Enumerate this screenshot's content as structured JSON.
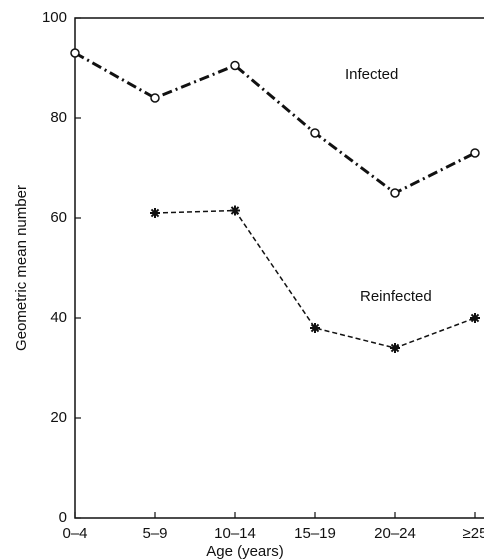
{
  "chart_data": {
    "type": "line",
    "x_label": "Age (years)",
    "y_label": "Geometric mean number",
    "categories": [
      "0–4",
      "5–9",
      "10–14",
      "15–19",
      "20–24",
      "≥25"
    ],
    "series": [
      {
        "name": "Infected",
        "color": "#111111",
        "values": [
          93,
          84,
          90.5,
          77,
          65,
          73
        ]
      },
      {
        "name": "Reinfected",
        "color": "#111111",
        "values": [
          null,
          61,
          61.5,
          38,
          34,
          40
        ]
      }
    ],
    "ylim": [
      0,
      100
    ],
    "yticks": [
      0,
      20,
      40,
      60,
      80,
      100
    ]
  }
}
